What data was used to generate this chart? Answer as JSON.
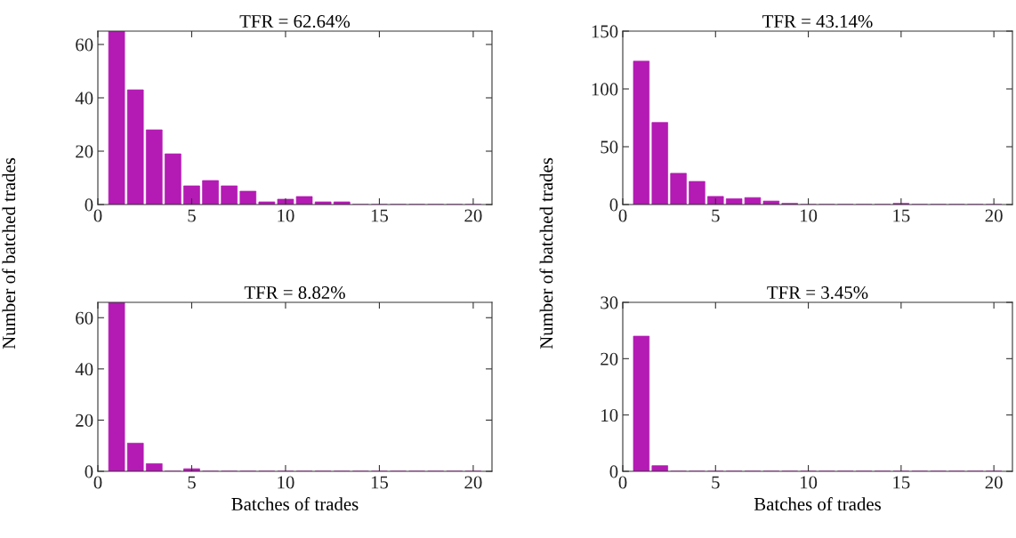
{
  "chart_data": [
    {
      "type": "bar",
      "title": "TFR = 62.64%",
      "ylabel": "Number of batched trades",
      "x": [
        1,
        2,
        3,
        4,
        5,
        6,
        7,
        8,
        9,
        10,
        11,
        12,
        13,
        14,
        15,
        16,
        17,
        18,
        19,
        20
      ],
      "values": [
        65,
        43,
        28,
        19,
        7,
        9,
        7,
        5,
        1,
        2,
        3,
        1,
        1,
        0,
        0,
        0,
        0,
        0,
        0,
        0
      ],
      "color": "#b41ab4",
      "xlim": [
        0,
        21
      ],
      "xticks": [
        0,
        5,
        10,
        15,
        20
      ],
      "ylim": [
        0,
        65
      ],
      "yticks": [
        0,
        20,
        40,
        60
      ],
      "grid": false
    },
    {
      "type": "bar",
      "title": "TFR = 43.14%",
      "ylabel": "Number of batched trades",
      "x": [
        1,
        2,
        3,
        4,
        5,
        6,
        7,
        8,
        9,
        10,
        11,
        12,
        13,
        14,
        15,
        16,
        17,
        18,
        19,
        20
      ],
      "values": [
        124,
        71,
        27,
        20,
        7,
        5,
        6,
        3,
        1,
        0,
        0,
        0,
        0,
        0,
        1,
        0,
        0,
        0,
        0,
        0
      ],
      "color": "#b41ab4",
      "xlim": [
        0,
        21
      ],
      "xticks": [
        0,
        5,
        10,
        15,
        20
      ],
      "ylim": [
        0,
        150
      ],
      "yticks": [
        0,
        50,
        100,
        150
      ],
      "grid": false
    },
    {
      "type": "bar",
      "title": "TFR = 8.82%",
      "xlabel": "Batches of trades",
      "x": [
        1,
        2,
        3,
        4,
        5,
        6,
        7,
        8,
        9,
        10,
        11,
        12,
        13,
        14,
        15,
        16,
        17,
        18,
        19,
        20
      ],
      "values": [
        66,
        11,
        3,
        0,
        1,
        0,
        0,
        0,
        0,
        0,
        0,
        0,
        0,
        0,
        0,
        0,
        0,
        0,
        0,
        0
      ],
      "color": "#b41ab4",
      "xlim": [
        0,
        21
      ],
      "xticks": [
        0,
        5,
        10,
        15,
        20
      ],
      "ylim": [
        0,
        66
      ],
      "yticks": [
        0,
        20,
        40,
        60
      ],
      "grid": false
    },
    {
      "type": "bar",
      "title": "TFR = 3.45%",
      "xlabel": "Batches of trades",
      "x": [
        1,
        2,
        3,
        4,
        5,
        6,
        7,
        8,
        9,
        10,
        11,
        12,
        13,
        14,
        15,
        16,
        17,
        18,
        19,
        20
      ],
      "values": [
        24,
        1,
        0,
        0,
        0,
        0,
        0,
        0,
        0,
        0,
        0,
        0,
        0,
        0,
        0,
        0,
        0,
        0,
        0,
        0
      ],
      "color": "#b41ab4",
      "xlim": [
        0,
        21
      ],
      "xticks": [
        0,
        5,
        10,
        15,
        20
      ],
      "ylim": [
        0,
        30
      ],
      "yticks": [
        0,
        10,
        20,
        30
      ],
      "grid": false
    }
  ]
}
